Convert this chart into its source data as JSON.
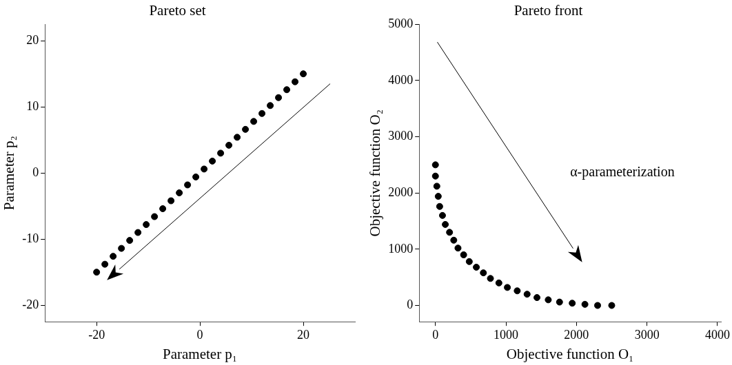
{
  "chart_data": [
    {
      "type": "scatter",
      "title": "Pareto set",
      "xlabel": "Parameter p₁",
      "ylabel": "Parameter p₂",
      "xlim": [
        -30,
        30
      ],
      "xticks": [
        -20,
        0,
        20
      ],
      "ylim": [
        -22.5,
        22.5
      ],
      "yticks": [
        -20,
        -10,
        0,
        10,
        20
      ],
      "grid": false,
      "legend": false,
      "marker": "circle",
      "series": [
        {
          "color": "#000000",
          "x": [
            -20,
            -18.4,
            -16.8,
            -15.2,
            -13.6,
            -12,
            -10.4,
            -8.8,
            -7.2,
            -5.6,
            -4,
            -2.4,
            -0.8,
            0.8,
            2.4,
            4,
            5.6,
            7.2,
            8.8,
            10.4,
            12,
            13.6,
            15.2,
            16.8,
            18.4,
            20
          ],
          "values": [
            -15,
            -13.8,
            -12.6,
            -11.4,
            -10.2,
            -9,
            -7.8,
            -6.6,
            -5.4,
            -4.2,
            -3,
            -1.8,
            -0.6,
            0.6,
            1.8,
            3,
            4.2,
            5.4,
            6.6,
            7.8,
            9,
            10.2,
            11.4,
            12.6,
            13.8,
            15
          ]
        }
      ]
    },
    {
      "type": "scatter",
      "title": "Pareto front",
      "xlabel": "Objective function O₁",
      "ylabel": "Objective function O₂",
      "xlim": [
        -230,
        4050
      ],
      "xticks": [
        0,
        1000,
        2000,
        3000,
        4000
      ],
      "ylim": [
        -290,
        5000
      ],
      "yticks": [
        0,
        1000,
        2000,
        3000,
        4000,
        5000
      ],
      "grid": false,
      "legend": false,
      "marker": "circle",
      "annotations": [
        "α-parameterization"
      ],
      "series": [
        {
          "color": "#000000",
          "x": [
            0,
            0,
            20,
            40,
            60,
            100,
            140,
            200,
            260,
            320,
            400,
            480,
            580,
            680,
            780,
            900,
            1020,
            1160,
            1300,
            1440,
            1600,
            1760,
            1940,
            2120,
            2300,
            2500
          ],
          "values": [
            2500,
            2300,
            2120,
            1940,
            1760,
            1600,
            1440,
            1300,
            1160,
            1020,
            900,
            780,
            680,
            580,
            480,
            400,
            320,
            260,
            200,
            140,
            100,
            60,
            40,
            20,
            0,
            0
          ]
        }
      ]
    }
  ]
}
